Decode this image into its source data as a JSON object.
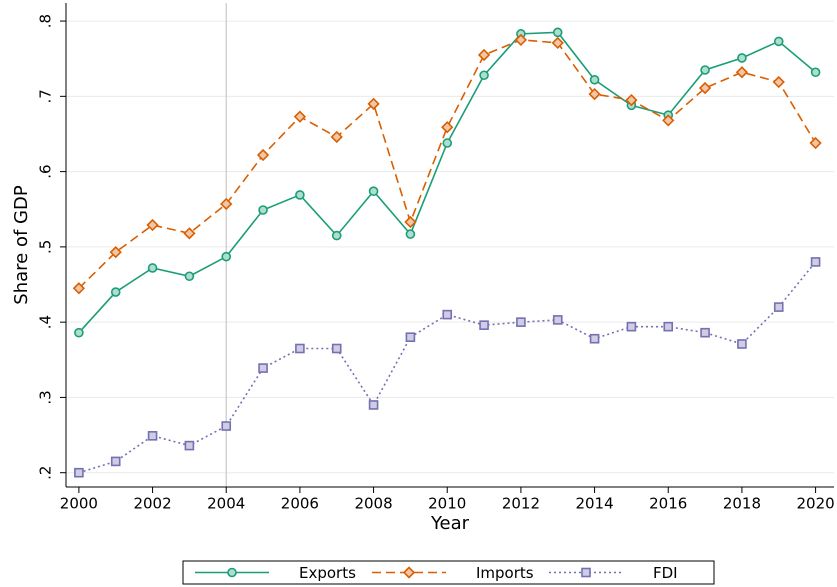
{
  "chart_data": {
    "type": "line",
    "x": [
      2000,
      2001,
      2002,
      2003,
      2004,
      2005,
      2006,
      2007,
      2008,
      2009,
      2010,
      2011,
      2012,
      2013,
      2014,
      2015,
      2016,
      2017,
      2018,
      2019,
      2020
    ],
    "series": [
      {
        "name": "Exports",
        "color": "#1b9e77",
        "line_style": "solid",
        "marker": "circle",
        "values": [
          0.386,
          0.44,
          0.472,
          0.461,
          0.487,
          0.549,
          0.569,
          0.515,
          0.574,
          0.517,
          0.638,
          0.728,
          0.783,
          0.785,
          0.722,
          0.688,
          0.675,
          0.735,
          0.751,
          0.773,
          0.732
        ]
      },
      {
        "name": "Imports",
        "color": "#d95f02",
        "line_style": "dashed",
        "marker": "diamond",
        "values": [
          0.445,
          0.493,
          0.529,
          0.518,
          0.557,
          0.622,
          0.673,
          0.646,
          0.69,
          0.533,
          0.659,
          0.755,
          0.775,
          0.771,
          0.703,
          0.695,
          0.668,
          0.711,
          0.732,
          0.719,
          0.638
        ]
      },
      {
        "name": "FDI",
        "color": "#7570b3",
        "line_style": "dotted",
        "marker": "square",
        "values": [
          0.2,
          0.215,
          0.249,
          0.236,
          0.262,
          0.339,
          0.365,
          0.365,
          0.29,
          0.38,
          0.41,
          0.396,
          0.4,
          0.403,
          0.378,
          0.394,
          0.394,
          0.386,
          0.371,
          0.42,
          0.48
        ]
      }
    ],
    "x_label": "Year",
    "y_label": "Share of GDP",
    "xlim": [
      1999.65,
      2020.5
    ],
    "ylim": [
      0.181,
      0.824
    ],
    "xticks": [
      2000,
      2002,
      2004,
      2006,
      2008,
      2010,
      2012,
      2014,
      2016,
      2018,
      2020
    ],
    "yticks": [
      {
        "value": 0.2,
        "label": ".2"
      },
      {
        "value": 0.3,
        "label": ".3"
      },
      {
        "value": 0.4,
        "label": ".4"
      },
      {
        "value": 0.5,
        "label": ".5"
      },
      {
        "value": 0.6,
        "label": ".6"
      },
      {
        "value": 0.7,
        "label": ".7"
      },
      {
        "value": 0.8,
        "label": ".8"
      }
    ],
    "xline": 2004,
    "grid": true,
    "legend": "bottom"
  }
}
